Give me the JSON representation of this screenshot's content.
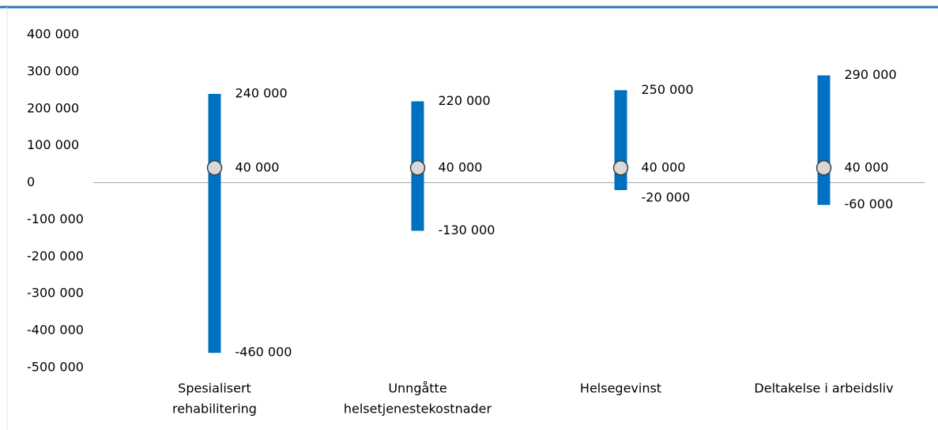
{
  "chart_data": {
    "type": "range",
    "categories": [
      [
        "Spesialisert",
        "rehabilitering"
      ],
      [
        "Unngåtte",
        "helsetjenestekostnader"
      ],
      [
        "Helsegevinst"
      ],
      [
        "Deltakelse i arbeidsliv"
      ]
    ],
    "high": [
      240000,
      220000,
      250000,
      290000
    ],
    "high_labels": [
      "240 000",
      "220 000",
      "250 000",
      "290 000"
    ],
    "low": [
      -460000,
      -130000,
      -20000,
      -60000
    ],
    "low_labels": [
      "-460 000",
      "-130 000",
      "-20 000",
      "-60 000"
    ],
    "mid": [
      40000,
      40000,
      40000,
      40000
    ],
    "mid_labels": [
      "40 000",
      "40 000",
      "40 000",
      "40 000"
    ],
    "color": "#0070c0",
    "marker_color": "#d9d9d9",
    "ylim": [
      -500000,
      400000
    ],
    "yticks": [
      {
        "value": 400000,
        "label": "400 000"
      },
      {
        "value": 300000,
        "label": "300 000"
      },
      {
        "value": 200000,
        "label": "200 000"
      },
      {
        "value": 100000,
        "label": "100 000"
      },
      0,
      {
        "value": -100000,
        "label": "-100 000"
      },
      {
        "value": -200000,
        "label": "-200 000"
      },
      {
        "value": -300000,
        "label": "-300 000"
      },
      {
        "value": -400000,
        "label": "-400 000"
      },
      {
        "value": -500000,
        "label": "-500 000"
      }
    ]
  }
}
